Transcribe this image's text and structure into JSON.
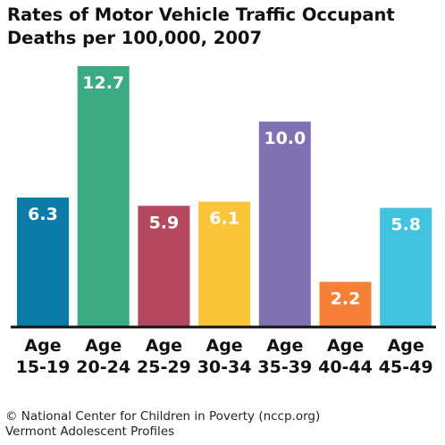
{
  "chart_data": {
    "type": "bar",
    "title": [
      "Rates of Motor Vehicle Traffic Occupant",
      "Deaths per 100,000, 2007"
    ],
    "categories": [
      [
        "Age",
        "15-19"
      ],
      [
        "Age",
        "20-24"
      ],
      [
        "Age",
        "25-29"
      ],
      [
        "Age",
        "30-34"
      ],
      [
        "Age",
        "35-39"
      ],
      [
        "Age",
        "40-44"
      ],
      [
        "Age",
        "45-49"
      ]
    ],
    "values": [
      6.3,
      12.7,
      5.9,
      6.1,
      10.0,
      2.2,
      5.8
    ],
    "value_labels": [
      "6.3",
      "12.7",
      "5.9",
      "6.1",
      "10.0",
      "2.2",
      "5.8"
    ],
    "colors": [
      "#0a7aa8",
      "#3aab82",
      "#b4485e",
      "#fbc53a",
      "#8071b3",
      "#f58036",
      "#40c3de"
    ],
    "ylim": [
      0,
      12.7
    ],
    "xlabel": "",
    "ylabel": "",
    "grid": false,
    "legend": "none"
  },
  "credit": [
    "© National Center for Children in Poverty (nccp.org)",
    "Vermont Adolescent Profiles"
  ]
}
